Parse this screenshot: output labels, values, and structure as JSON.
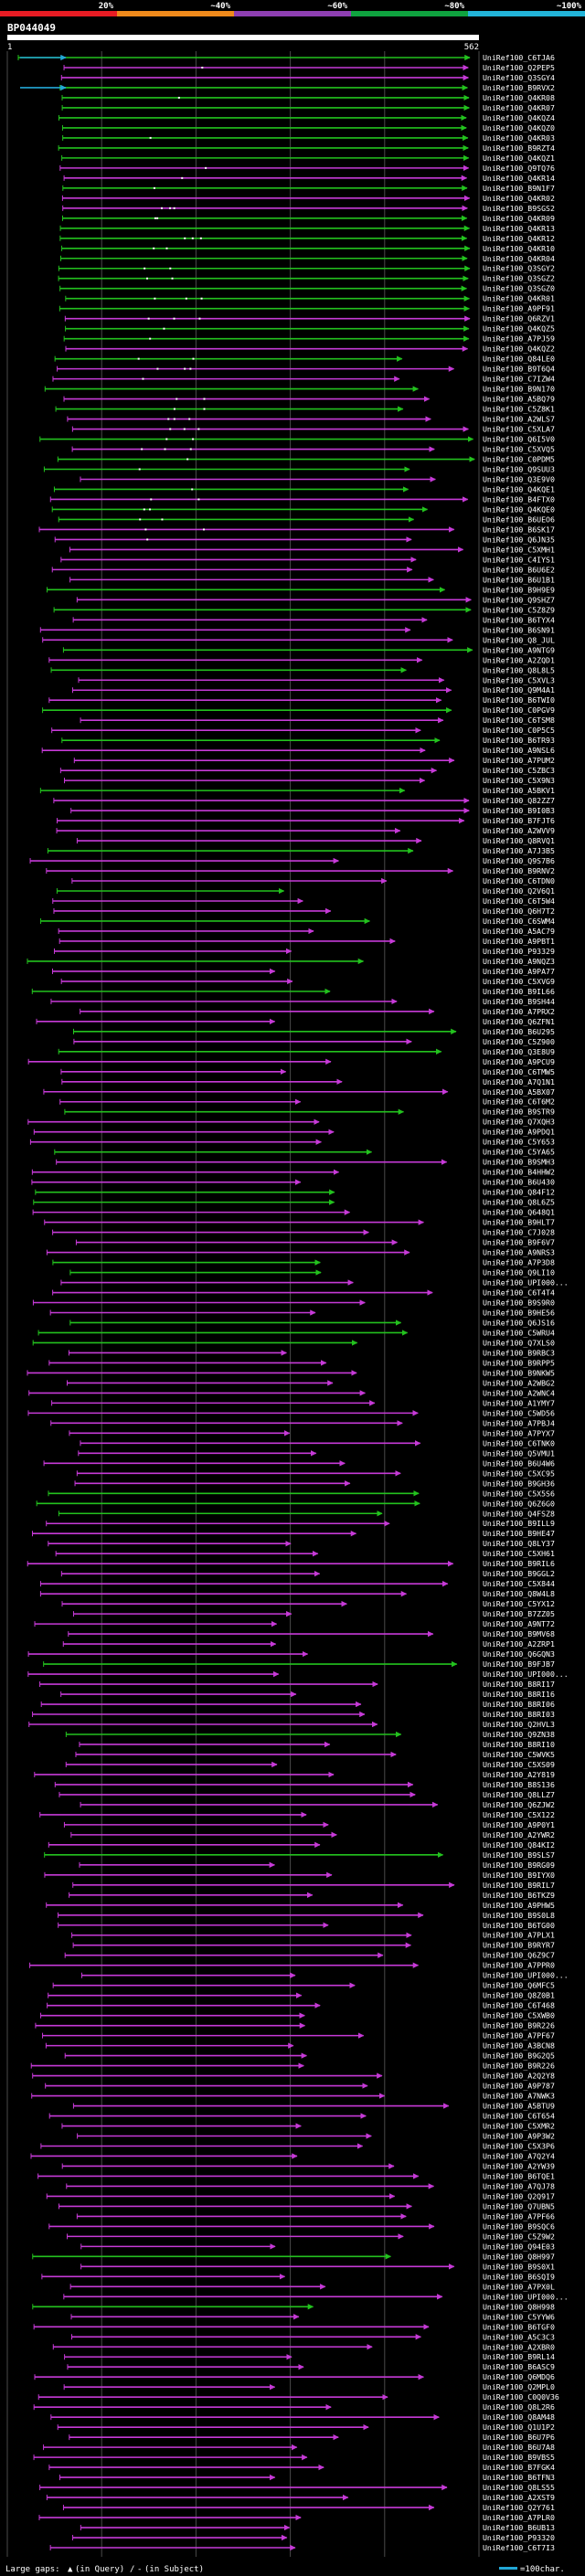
{
  "scale": {
    "marks": [
      "20%",
      "~40%",
      "~60%",
      "~80%",
      "~100%"
    ],
    "colors": [
      "#e81c24",
      "#ef8a1b",
      "#8e3fb2",
      "#0fa23f",
      "#22b4d9"
    ]
  },
  "query": {
    "name": "BP044049",
    "start": "1",
    "end": "562"
  },
  "colors": {
    "green": "#23c21e",
    "magenta": "#c63ad7",
    "cyan": "#22a7d6",
    "white": "#ffffff",
    "grid": "#4a4a4a"
  },
  "legend": {
    "gaps_label": "Large gaps:",
    "in_query": "(in Query)",
    "separator": "/",
    "in_subject": "(in Subject)",
    "scale_label": "=100char."
  },
  "hits": [
    {
      "label": "UniRef100_C6TJA6",
      "c": "g"
    },
    {
      "label": "UniRef100_Q2PEP5",
      "c": "m"
    },
    {
      "label": "UniRef100_Q3SGY4",
      "c": "m"
    },
    {
      "label": "UniRef100_B9RVX2",
      "c": "g"
    },
    {
      "label": "UniRef100_Q4KR08",
      "c": "g"
    },
    {
      "label": "UniRef100_Q4KR07",
      "c": "g"
    },
    {
      "label": "UniRef100_Q4KQZ4",
      "c": "g"
    },
    {
      "label": "UniRef100_Q4KQZ0",
      "c": "g"
    },
    {
      "label": "UniRef100_Q4KR03",
      "c": "g"
    },
    {
      "label": "UniRef100_B9RZT4",
      "c": "g"
    },
    {
      "label": "UniRef100_Q4KQZ1",
      "c": "g"
    },
    {
      "label": "UniRef100_Q9TQ76",
      "c": "m"
    },
    {
      "label": "UniRef100_Q4KR14",
      "c": "m"
    },
    {
      "label": "UniRef100_B9N1F7",
      "c": "g"
    },
    {
      "label": "UniRef100_Q4KR02",
      "c": "m"
    },
    {
      "label": "UniRef100_B9SGS2",
      "c": "m"
    },
    {
      "label": "UniRef100_Q4KR09",
      "c": "g"
    },
    {
      "label": "UniRef100_Q4KR13",
      "c": "g"
    },
    {
      "label": "UniRef100_Q4KR12",
      "c": "g"
    },
    {
      "label": "UniRef100_Q4KR10",
      "c": "g"
    },
    {
      "label": "UniRef100_Q4KR04",
      "c": "g"
    },
    {
      "label": "UniRef100_Q3SGY2",
      "c": "g"
    },
    {
      "label": "UniRef100_Q3SGZ2",
      "c": "g"
    },
    {
      "label": "UniRef100_Q3SGZ0",
      "c": "g"
    },
    {
      "label": "UniRef100_Q4KR01",
      "c": "g"
    },
    {
      "label": "UniRef100_A9PF91",
      "c": "g"
    },
    {
      "label": "UniRef100_Q6RZV1",
      "c": "m"
    },
    {
      "label": "UniRef100_Q4KQZ5",
      "c": "g"
    },
    {
      "label": "UniRef100_A7PJ59",
      "c": "g"
    },
    {
      "label": "UniRef100_Q4KQZ2",
      "c": "m"
    },
    {
      "label": "UniRef100_Q84LE0",
      "c": "g"
    },
    {
      "label": "UniRef100_B9T6Q4",
      "c": "m"
    },
    {
      "label": "UniRef100_C7IZW4",
      "c": "m"
    },
    {
      "label": "UniRef100_B9N170",
      "c": "g"
    },
    {
      "label": "UniRef100_A5BQ79",
      "c": "m"
    },
    {
      "label": "UniRef100_C5Z8K1",
      "c": "g"
    },
    {
      "label": "UniRef100_A2WLS7",
      "c": "m"
    },
    {
      "label": "UniRef100_C5XLA7",
      "c": "m"
    },
    {
      "label": "UniRef100_Q6I5V0",
      "c": "g"
    },
    {
      "label": "UniRef100_C5XVQ5",
      "c": "m"
    },
    {
      "label": "UniRef100_C0PDM5",
      "c": "g"
    },
    {
      "label": "UniRef100_Q9SUU3",
      "c": "g"
    },
    {
      "label": "UniRef100_Q3E9V0",
      "c": "m"
    },
    {
      "label": "UniRef100_Q4KQE1",
      "c": "g"
    },
    {
      "label": "UniRef100_B4FTX0",
      "c": "m"
    },
    {
      "label": "UniRef100_Q4KQE0",
      "c": "g"
    },
    {
      "label": "UniRef100_B6UEO6",
      "c": "g"
    },
    {
      "label": "UniRef100_B6SK17",
      "c": "m"
    },
    {
      "label": "UniRef100_Q6JN35",
      "c": "m"
    },
    {
      "label": "UniRef100_C5XMH1",
      "c": "m"
    },
    {
      "label": "UniRef100_C4IYS1",
      "c": "m"
    },
    {
      "label": "UniRef100_B6U6E2",
      "c": "m"
    },
    {
      "label": "UniRef100_B6U1B1",
      "c": "m"
    },
    {
      "label": "UniRef100_B9H9E9",
      "c": "g"
    },
    {
      "label": "UniRef100_Q9SHZ7",
      "c": "m"
    },
    {
      "label": "UniRef100_C5Z8Z9",
      "c": "g"
    },
    {
      "label": "UniRef100_B6TYX4",
      "c": "m"
    },
    {
      "label": "UniRef100_B6SN91",
      "c": "m"
    },
    {
      "label": "UniRef100_Q8_JUL",
      "c": "m"
    },
    {
      "label": "UniRef100_A9NTG9",
      "c": "g"
    },
    {
      "label": "UniRef100_A2ZQD1",
      "c": "m"
    },
    {
      "label": "UniRef100_Q8L8L5",
      "c": "g"
    },
    {
      "label": "UniRef100_C5XVL3",
      "c": "m"
    },
    {
      "label": "UniRef100_Q9M4A1",
      "c": "m"
    },
    {
      "label": "UniRef100_B6TWI0",
      "c": "m"
    },
    {
      "label": "UniRef100_C0PGV9",
      "c": "g"
    },
    {
      "label": "UniRef100_C6TSM8",
      "c": "m"
    },
    {
      "label": "UniRef100_C0P5C5",
      "c": "m"
    },
    {
      "label": "UniRef100_B6TR93",
      "c": "g"
    },
    {
      "label": "UniRef100_A9NSL6",
      "c": "m"
    },
    {
      "label": "UniRef100_A7PUM2",
      "c": "m"
    },
    {
      "label": "UniRef100_C5ZBC3",
      "c": "m"
    },
    {
      "label": "UniRef100_C5X9N3",
      "c": "m"
    },
    {
      "label": "UniRef100_A5BKV1",
      "c": "g"
    },
    {
      "label": "UniRef100_Q82ZZ7",
      "c": "m"
    },
    {
      "label": "UniRef100_B9I0B3",
      "c": "m"
    },
    {
      "label": "UniRef100_B7FJT6",
      "c": "m"
    },
    {
      "label": "UniRef100_A2WVV9",
      "c": "m"
    },
    {
      "label": "UniRef100_Q8RVQ1",
      "c": "m"
    },
    {
      "label": "UniRef100_A7J3B5",
      "c": "g"
    },
    {
      "label": "UniRef100_Q9S7B6",
      "c": "m"
    },
    {
      "label": "UniRef100_B9RNV2",
      "c": "m"
    },
    {
      "label": "UniRef100_C6TDN0",
      "c": "m"
    },
    {
      "label": "UniRef100_Q2V6Q1",
      "c": "g"
    },
    {
      "label": "UniRef100_C6T5W4",
      "c": "m"
    },
    {
      "label": "UniRef100_Q6H7T2",
      "c": "m"
    },
    {
      "label": "UniRef100_C6SWM4",
      "c": "g"
    },
    {
      "label": "UniRef100_A5AC79",
      "c": "m"
    },
    {
      "label": "UniRef100_A9PBT1",
      "c": "m"
    },
    {
      "label": "UniRef100_P93329",
      "c": "m"
    },
    {
      "label": "UniRef100_A9NQZ3",
      "c": "g"
    },
    {
      "label": "UniRef100_A9PA77",
      "c": "m"
    },
    {
      "label": "UniRef100_C5XVG9",
      "c": "m"
    },
    {
      "label": "UniRef100_B9IL66",
      "c": "g"
    },
    {
      "label": "UniRef100_B9SH44",
      "c": "m"
    },
    {
      "label": "UniRef100_A7PRX2",
      "c": "m"
    },
    {
      "label": "UniRef100_Q6ZFN1",
      "c": "m"
    },
    {
      "label": "UniRef100_B6U295",
      "c": "g"
    },
    {
      "label": "UniRef100_C5Z900",
      "c": "m"
    },
    {
      "label": "UniRef100_Q3E8U9",
      "c": "g"
    },
    {
      "label": "UniRef100_A9PCU9",
      "c": "m"
    },
    {
      "label": "UniRef100_C6TMW5",
      "c": "m"
    },
    {
      "label": "UniRef100_A7Q1N1",
      "c": "m"
    },
    {
      "label": "UniRef100_A5BX07",
      "c": "m"
    },
    {
      "label": "UniRef100_C6T6M2",
      "c": "m"
    },
    {
      "label": "UniRef100_B9STR9",
      "c": "g"
    },
    {
      "label": "UniRef100_Q7XQH3",
      "c": "m"
    },
    {
      "label": "UniRef100_A9PDQ1",
      "c": "m"
    },
    {
      "label": "UniRef100_C5Y653",
      "c": "m"
    },
    {
      "label": "UniRef100_C5YA65",
      "c": "g"
    },
    {
      "label": "UniRef100_B9SMH3",
      "c": "m"
    },
    {
      "label": "UniRef100_B4HHW2",
      "c": "m"
    },
    {
      "label": "UniRef100_B6U430",
      "c": "m"
    },
    {
      "label": "UniRef100_Q84F12",
      "c": "g"
    },
    {
      "label": "UniRef100_Q8L6Z5",
      "c": "g"
    },
    {
      "label": "UniRef100_Q648Q1",
      "c": "m"
    },
    {
      "label": "UniRef100_B9HLT7",
      "c": "m"
    },
    {
      "label": "UniRef100_C7J028",
      "c": "m"
    },
    {
      "label": "UniRef100_B9F6V7",
      "c": "m"
    },
    {
      "label": "UniRef100_A9NRS3",
      "c": "m"
    },
    {
      "label": "UniRef100_A7P3D8",
      "c": "g"
    },
    {
      "label": "UniRef100_Q9LI10",
      "c": "g"
    },
    {
      "label": "UniRef100_UPI000...",
      "c": "m"
    },
    {
      "label": "UniRef100_C6T4T4",
      "c": "m"
    },
    {
      "label": "UniRef100_B9S9R0",
      "c": "m"
    },
    {
      "label": "UniRef100_B9HE56",
      "c": "m"
    },
    {
      "label": "UniRef100_Q6JS16",
      "c": "g"
    },
    {
      "label": "UniRef100_C5WRU4",
      "c": "g"
    },
    {
      "label": "UniRef100_Q7XLS0",
      "c": "g"
    },
    {
      "label": "UniRef100_B9RBC3",
      "c": "m"
    },
    {
      "label": "UniRef100_B9RPP5",
      "c": "m"
    },
    {
      "label": "UniRef100_B9NKW5",
      "c": "m"
    },
    {
      "label": "UniRef100_A2WBG2",
      "c": "m"
    },
    {
      "label": "UniRef100_A2WNC4",
      "c": "m"
    },
    {
      "label": "UniRef100_A1YMY7",
      "c": "m"
    },
    {
      "label": "UniRef100_C5WD56",
      "c": "m"
    },
    {
      "label": "UniRef100_A7PBJ4",
      "c": "m"
    },
    {
      "label": "UniRef100_A7PYX7",
      "c": "m"
    },
    {
      "label": "UniRef100_C6TNK0",
      "c": "m"
    },
    {
      "label": "UniRef100_Q5VMU1",
      "c": "m"
    },
    {
      "label": "UniRef100_B6U4W6",
      "c": "m"
    },
    {
      "label": "UniRef100_C5XC95",
      "c": "m"
    },
    {
      "label": "UniRef100_B9GH36",
      "c": "m"
    },
    {
      "label": "UniRef100_C5X5S6",
      "c": "g"
    },
    {
      "label": "UniRef100_Q6Z6G0",
      "c": "g"
    },
    {
      "label": "UniRef100_Q4FSZ8",
      "c": "g"
    },
    {
      "label": "UniRef100_B9ILL9",
      "c": "m"
    },
    {
      "label": "UniRef100_B9HE47",
      "c": "m"
    },
    {
      "label": "UniRef100_Q8LY37",
      "c": "m"
    },
    {
      "label": "UniRef100_C5XH61",
      "c": "m"
    },
    {
      "label": "UniRef100_B9RIL6",
      "c": "m"
    },
    {
      "label": "UniRef100_B9GGL2",
      "c": "m"
    },
    {
      "label": "UniRef100_C5X844",
      "c": "m"
    },
    {
      "label": "UniRef100_Q8W4L8",
      "c": "m"
    },
    {
      "label": "UniRef100_C5YX12",
      "c": "m"
    },
    {
      "label": "UniRef100_B7ZZ05",
      "c": "m"
    },
    {
      "label": "UniRef100_A9NT72",
      "c": "m"
    },
    {
      "label": "UniRef100_B9MV68",
      "c": "m"
    },
    {
      "label": "UniRef100_A2ZRP1",
      "c": "m"
    },
    {
      "label": "UniRef100_Q6GQN3",
      "c": "m"
    },
    {
      "label": "UniRef100_B9FJB7",
      "c": "g"
    },
    {
      "label": "UniRef100_UPI000...",
      "c": "m"
    },
    {
      "label": "UniRef100_B8RI17",
      "c": "m"
    },
    {
      "label": "UniRef100_B8RI16",
      "c": "m"
    },
    {
      "label": "UniRef100_B8RI06",
      "c": "m"
    },
    {
      "label": "UniRef100_B8RI03",
      "c": "m"
    },
    {
      "label": "UniRef100_Q2HVL3",
      "c": "m"
    },
    {
      "label": "UniRef100_Q9ZN38",
      "c": "g"
    },
    {
      "label": "UniRef100_B8RI10",
      "c": "m"
    },
    {
      "label": "UniRef100_C5WVK5",
      "c": "m"
    },
    {
      "label": "UniRef100_C5XS09",
      "c": "m"
    },
    {
      "label": "UniRef100_A2Y819",
      "c": "m"
    },
    {
      "label": "UniRef100_B8S136",
      "c": "m"
    },
    {
      "label": "UniRef100_Q8LLZ7",
      "c": "m"
    },
    {
      "label": "UniRef100_Q6ZJW2",
      "c": "m"
    },
    {
      "label": "UniRef100_C5X122",
      "c": "m"
    },
    {
      "label": "UniRef100_A9P0Y1",
      "c": "m"
    },
    {
      "label": "UniRef100_A2YWR2",
      "c": "m"
    },
    {
      "label": "UniRef100_Q84KI2",
      "c": "m"
    },
    {
      "label": "UniRef100_B9SLS7",
      "c": "g"
    },
    {
      "label": "UniRef100_B9RG09",
      "c": "m"
    },
    {
      "label": "UniRef100_B9IYX0",
      "c": "m"
    },
    {
      "label": "UniRef100_B9RIL7",
      "c": "m"
    },
    {
      "label": "UniRef100_B6TKZ9",
      "c": "m"
    },
    {
      "label": "UniRef100_A9PHW5",
      "c": "m"
    },
    {
      "label": "UniRef100_B9S0L8",
      "c": "m"
    },
    {
      "label": "UniRef100_B6TG00",
      "c": "m"
    },
    {
      "label": "UniRef100_A7PLX1",
      "c": "m"
    },
    {
      "label": "UniRef100_B9RYR7",
      "c": "m"
    },
    {
      "label": "UniRef100_Q6Z9C7",
      "c": "m"
    },
    {
      "label": "UniRef100_A7PPR0",
      "c": "m"
    },
    {
      "label": "UniRef100_UPI000...",
      "c": "m"
    },
    {
      "label": "UniRef100_Q6MFC5",
      "c": "m"
    },
    {
      "label": "UniRef100_Q8Z0B1",
      "c": "m"
    },
    {
      "label": "UniRef100_C6T468",
      "c": "m"
    },
    {
      "label": "UniRef100_C5XWB0",
      "c": "m"
    },
    {
      "label": "UniRef100_B9R226",
      "c": "m"
    },
    {
      "label": "UniRef100_A7PF67",
      "c": "m"
    },
    {
      "label": "UniRef100_A3BCN8",
      "c": "m"
    },
    {
      "label": "UniRef100_B9G2Q5",
      "c": "m"
    },
    {
      "label": "UniRef100_B9R226",
      "c": "m"
    },
    {
      "label": "UniRef100_A2Q2Y8",
      "c": "m"
    },
    {
      "label": "UniRef100_A9P787",
      "c": "m"
    },
    {
      "label": "UniRef100_A7NWK3",
      "c": "m"
    },
    {
      "label": "UniRef100_A5BTU9",
      "c": "m"
    },
    {
      "label": "UniRef100_C6T654",
      "c": "m"
    },
    {
      "label": "UniRef100_C5XMR2",
      "c": "m"
    },
    {
      "label": "UniRef100_A9P3W2",
      "c": "m"
    },
    {
      "label": "UniRef100_C5X3P6",
      "c": "m"
    },
    {
      "label": "UniRef100_A7Q2Y4",
      "c": "m"
    },
    {
      "label": "UniRef100_A2YW39",
      "c": "m"
    },
    {
      "label": "UniRef100_B6TQE1",
      "c": "m"
    },
    {
      "label": "UniRef100_A7QJ78",
      "c": "m"
    },
    {
      "label": "UniRef100_Q2Q917",
      "c": "m"
    },
    {
      "label": "UniRef100_Q7UBN5",
      "c": "m"
    },
    {
      "label": "UniRef100_A7PF66",
      "c": "m"
    },
    {
      "label": "UniRef100_B9SQC6",
      "c": "m"
    },
    {
      "label": "UniRef100_C5Z9W2",
      "c": "m"
    },
    {
      "label": "UniRef100_Q94E03",
      "c": "m"
    },
    {
      "label": "UniRef100_Q8H997",
      "c": "g"
    },
    {
      "label": "UniRef100_B9S0X1",
      "c": "m"
    },
    {
      "label": "UniRef100_B6SQI9",
      "c": "m"
    },
    {
      "label": "UniRef100_A7PX0L",
      "c": "m"
    },
    {
      "label": "UniRef100_UPI000...",
      "c": "m"
    },
    {
      "label": "UniRef100_Q8H998",
      "c": "g"
    },
    {
      "label": "UniRef100_C5YYW6",
      "c": "m"
    },
    {
      "label": "UniRef100_B6TGF0",
      "c": "m"
    },
    {
      "label": "UniRef100_A5C3C3",
      "c": "m"
    },
    {
      "label": "UniRef100_A2XBR0",
      "c": "m"
    },
    {
      "label": "UniRef100_B9RL14",
      "c": "m"
    },
    {
      "label": "UniRef100_B6ASC9",
      "c": "m"
    },
    {
      "label": "UniRef100_Q6MDQ6",
      "c": "m"
    },
    {
      "label": "UniRef100_Q2MPL0",
      "c": "m"
    },
    {
      "label": "UniRef100_C0Q0V36",
      "c": "m"
    },
    {
      "label": "UniRef100_Q8L2R6",
      "c": "m"
    },
    {
      "label": "UniRef100_Q8AM48",
      "c": "m"
    },
    {
      "label": "UniRef100_Q1U1P2",
      "c": "m"
    },
    {
      "label": "UniRef100_B6U7P6",
      "c": "m"
    },
    {
      "label": "UniRef100_B6U7A8",
      "c": "m"
    },
    {
      "label": "UniRef100_B9VBS5",
      "c": "m"
    },
    {
      "label": "UniRef100_B7FGK4",
      "c": "m"
    },
    {
      "label": "UniRef100_B6TFN3",
      "c": "m"
    },
    {
      "label": "UniRef100_Q8LS55",
      "c": "m"
    },
    {
      "label": "UniRef100_A2XST9",
      "c": "m"
    },
    {
      "label": "UniRef100_Q2Y761",
      "c": "m"
    },
    {
      "label": "UniRef100_A7PLR0",
      "c": "m"
    },
    {
      "label": "UniRef100_B6UB13",
      "c": "m"
    },
    {
      "label": "UniRef100_P93320",
      "c": "m"
    },
    {
      "label": "UniRef100_C6T7I3",
      "c": "m"
    }
  ]
}
